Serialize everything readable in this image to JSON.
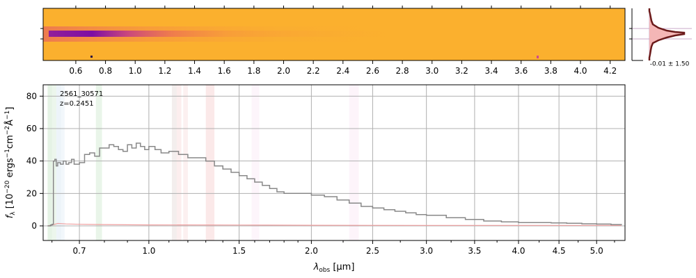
{
  "chart_data": [
    {
      "type": "heatmap",
      "panel": "2D spectrum",
      "x_tick_labels": [
        "0.6",
        "0.8",
        "1.0",
        "1.2",
        "1.4",
        "1.6",
        "1.8",
        "2.0",
        "2.2",
        "2.4",
        "2.6",
        "2.8",
        "3.0",
        "3.2",
        "3.4",
        "3.6",
        "3.8",
        "4.0",
        "4.2"
      ],
      "x_ticks": [
        0.6,
        0.8,
        1.0,
        1.2,
        1.4,
        1.6,
        1.8,
        2.0,
        2.2,
        2.4,
        2.6,
        2.8,
        3.0,
        3.2,
        3.4,
        3.6,
        3.8,
        4.0,
        4.2
      ],
      "colormap": "plasma",
      "background_color": "#fbb02e",
      "trace_color": "#8c1a9e"
    },
    {
      "type": "histogram",
      "panel": "pixel distribution",
      "annotation": "-0.01 ± 1.50",
      "line_color": "#6b1a1a",
      "fill_color": "#f4b6b6"
    },
    {
      "type": "line",
      "panel": "1D spectrum",
      "xlabel_main": "λ",
      "xlabel_sub": "obs",
      "xlabel_unit": " [μm]",
      "ylabel_main": "f",
      "ylabel_sub": "λ",
      "ylabel_unit": " [10",
      "ylabel_exp1": "−20",
      "ylabel_mid1": " ergs",
      "ylabel_exp2": "−1",
      "ylabel_mid2": "cm",
      "ylabel_exp3": "−2",
      "ylabel_mid3": "Å",
      "ylabel_exp4": "−1",
      "ylabel_end": "]",
      "annotation_id": "2561_30571",
      "annotation_z": "z=0.2451",
      "x_scale": "power-law",
      "x_tick_labels": [
        "0.7",
        "1.0",
        "1.5",
        "2.0",
        "2.5",
        "3.0",
        "3.5",
        "4.0",
        "4.5",
        "5.0"
      ],
      "x_ticks": [
        0.7,
        1.0,
        1.5,
        2.0,
        2.5,
        3.0,
        3.5,
        4.0,
        4.5,
        5.0
      ],
      "xlim": [
        0.57,
        5.4
      ],
      "y_ticks": [
        0,
        20,
        40,
        60,
        80
      ],
      "ylim": [
        -9,
        87
      ],
      "grid": true,
      "series": [
        {
          "color": "#888888",
          "step": true,
          "x": [
            0.585,
            0.595,
            0.6,
            0.605,
            0.61,
            0.615,
            0.62,
            0.63,
            0.64,
            0.65,
            0.66,
            0.67,
            0.68,
            0.7,
            0.72,
            0.74,
            0.76,
            0.78,
            0.8,
            0.82,
            0.84,
            0.86,
            0.88,
            0.9,
            0.92,
            0.94,
            0.96,
            0.98,
            1.0,
            1.03,
            1.06,
            1.1,
            1.15,
            1.2,
            1.25,
            1.3,
            1.35,
            1.4,
            1.45,
            1.5,
            1.55,
            1.6,
            1.65,
            1.7,
            1.75,
            1.8,
            1.85,
            1.9,
            2.0,
            2.1,
            2.2,
            2.3,
            2.4,
            2.5,
            2.6,
            2.7,
            2.8,
            2.9,
            3.0,
            3.2,
            3.4,
            3.6,
            3.8,
            4.0,
            4.2,
            4.4,
            4.6,
            4.8,
            5.0,
            5.2,
            5.35
          ],
          "y": [
            0,
            0.5,
            1,
            40,
            41,
            37,
            39,
            38,
            40,
            38,
            39,
            41,
            38,
            39,
            44,
            45,
            43,
            48,
            48,
            50,
            49,
            47,
            46,
            50,
            48,
            51,
            49,
            47,
            49,
            47,
            45,
            46,
            44,
            42,
            42,
            40,
            37,
            35,
            33,
            31,
            29,
            27,
            25,
            23,
            21,
            20,
            20,
            20,
            19,
            18,
            16,
            14,
            12,
            11,
            10,
            9,
            8,
            7,
            6.5,
            5,
            4,
            3,
            2.5,
            2,
            2,
            1.8,
            1.6,
            1.3,
            1.1,
            0.8,
            0.5
          ]
        },
        {
          "color": "#f0a0a0",
          "step": false,
          "x": [
            0.585,
            0.6,
            0.62,
            0.65,
            0.7,
            0.8,
            1.0,
            1.5,
            2.0,
            3.0,
            4.0,
            5.0,
            5.35
          ],
          "y": [
            0,
            0.5,
            1.5,
            1.2,
            1,
            0.8,
            0.6,
            0.5,
            0.4,
            0.3,
            0.3,
            0.3,
            0.3
          ]
        }
      ],
      "bands": [
        {
          "x0": 0.585,
          "x1": 0.6,
          "color": "#2ca02c",
          "opacity": 0.12
        },
        {
          "x0": 0.6,
          "x1": 0.615,
          "color": "#2ca02c",
          "opacity": 0.09
        },
        {
          "x0": 0.615,
          "x1": 0.632,
          "color": "#1f77b4",
          "opacity": 0.08
        },
        {
          "x0": 0.632,
          "x1": 0.645,
          "color": "#1f77b4",
          "opacity": 0.06
        },
        {
          "x0": 0.765,
          "x1": 0.79,
          "color": "#2ca02c",
          "opacity": 0.1
        },
        {
          "x0": 1.115,
          "x1": 1.14,
          "color": "#8c564b",
          "opacity": 0.1
        },
        {
          "x0": 1.14,
          "x1": 1.165,
          "color": "#d62728",
          "opacity": 0.08
        },
        {
          "x0": 1.175,
          "x1": 1.2,
          "color": "#d62728",
          "opacity": 0.07
        },
        {
          "x0": 1.3,
          "x1": 1.35,
          "color": "#d62728",
          "opacity": 0.1
        },
        {
          "x0": 1.58,
          "x1": 1.63,
          "color": "#e377c2",
          "opacity": 0.07
        },
        {
          "x0": 2.3,
          "x1": 2.38,
          "color": "#e377c2",
          "opacity": 0.08
        }
      ]
    }
  ]
}
